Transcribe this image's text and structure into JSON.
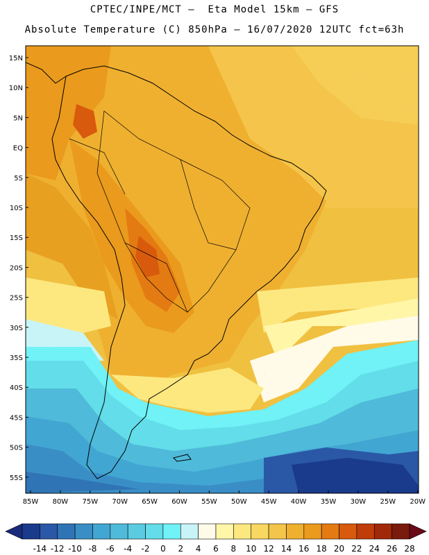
{
  "header": {
    "line1": "CPTEC/INPE/MCT –  Eta Model 15km – GFS",
    "line2": "Absolute Temperature (C) 850hPa – 16/07/2020 12UTC fct=63h"
  },
  "axes": {
    "lat_labels": [
      "15N",
      "10N",
      "5N",
      "EQ",
      "5S",
      "10S",
      "15S",
      "20S",
      "25S",
      "30S",
      "35S",
      "40S",
      "45S",
      "50S",
      "55S"
    ],
    "lon_labels": [
      "85W",
      "80W",
      "75W",
      "70W",
      "65W",
      "60W",
      "55W",
      "50W",
      "45W",
      "40W",
      "35W",
      "30W",
      "25W",
      "20W"
    ]
  },
  "colorbar": {
    "colors": [
      "#1a3a8c",
      "#2a58a6",
      "#2f74b5",
      "#3a8ec6",
      "#42a6d2",
      "#4fbad9",
      "#5bcbe2",
      "#62dde9",
      "#70f2f6",
      "#c8f4f8",
      "#fffbe8",
      "#fff6a8",
      "#fde880",
      "#f9d862",
      "#f4c54a",
      "#efb030",
      "#ea9a1c",
      "#e47a12",
      "#d85a0c",
      "#c03c08",
      "#a12808",
      "#7a1a0c"
    ],
    "left_arrow_color": "#1a2a7a",
    "right_arrow_color": "#6a0a18",
    "labels": [
      "-14",
      "-12",
      "-10",
      "-8",
      "-6",
      "-4",
      "-2",
      "0",
      "2",
      "4",
      "6",
      "8",
      "10",
      "12",
      "14",
      "16",
      "18",
      "20",
      "22",
      "24",
      "26",
      "28"
    ]
  }
}
